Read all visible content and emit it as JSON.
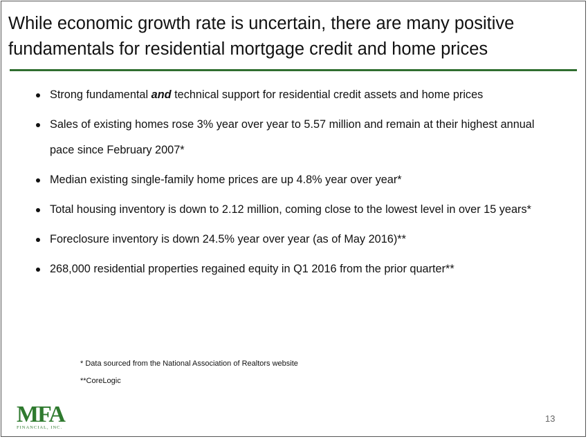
{
  "header": {
    "title_lines": [
      "While economic growth rate is uncertain, there are many positive",
      "fundamentals for residential mortgage credit and home prices"
    ]
  },
  "bullets": [
    [
      "Strong fundamental ",
      "and",
      " technical support for residential credit assets and home prices"
    ],
    [
      "Sales of existing homes rose 3% year over year to 5.57 million and remain at their highest annual pace since February 2007*"
    ],
    [
      "Median existing single-family home prices are up 4.8% year over year*"
    ],
    [
      "Total housing inventory is down to 2.12 million, coming close to the lowest level in over 15 years*"
    ],
    [
      "Foreclosure inventory is down 24.5% year over year (as of May 2016)**"
    ],
    [
      "268,000 residential properties regained equity in Q1 2016 from the prior quarter**"
    ]
  ],
  "footnotes": [
    "* Data sourced from the National Association of Realtors website",
    "**CoreLogic"
  ],
  "footer": {
    "logo": "MFA",
    "logo_sub": "FINANCIAL, INC.",
    "page_number": "13"
  }
}
